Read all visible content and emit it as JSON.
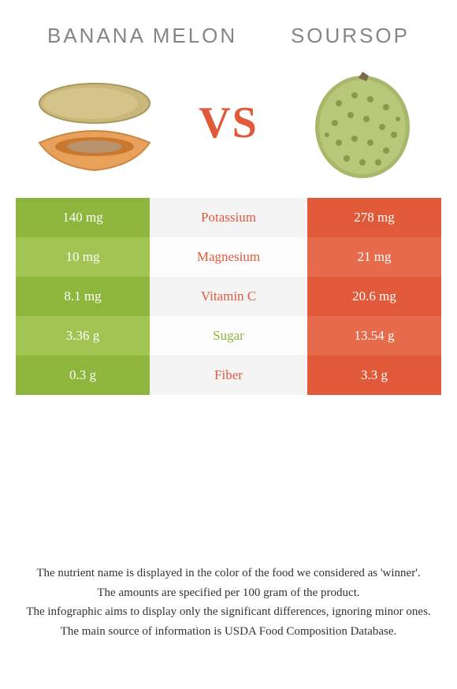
{
  "left_food": {
    "name": "BANANA MELON",
    "color": "#8fb63c",
    "alt_color": "#a1c452"
  },
  "right_food": {
    "name": "SOURSOP",
    "color": "#e05a3a",
    "alt_color": "#e66b4d"
  },
  "vs_label": "VS",
  "rows": [
    {
      "nutrient": "Potassium",
      "left": "140 mg",
      "right": "278 mg",
      "winner": "right"
    },
    {
      "nutrient": "Magnesium",
      "left": "10 mg",
      "right": "21 mg",
      "winner": "right"
    },
    {
      "nutrient": "Vitamin C",
      "left": "8.1 mg",
      "right": "20.6 mg",
      "winner": "right"
    },
    {
      "nutrient": "Sugar",
      "left": "3.36 g",
      "right": "13.54 g",
      "winner": "left"
    },
    {
      "nutrient": "Fiber",
      "left": "0.3 g",
      "right": "3.3 g",
      "winner": "right"
    }
  ],
  "footer": [
    "The nutrient name is displayed in the color of the food we considered as 'winner'.",
    "The amounts are specified per 100 gram of the product.",
    "The infographic aims to display only the significant differences, ignoring minor ones.",
    "The main source of information is USDA Food Composition Database."
  ],
  "mid_bg_colors": [
    "#f4f4f4",
    "#fcfcfc"
  ]
}
